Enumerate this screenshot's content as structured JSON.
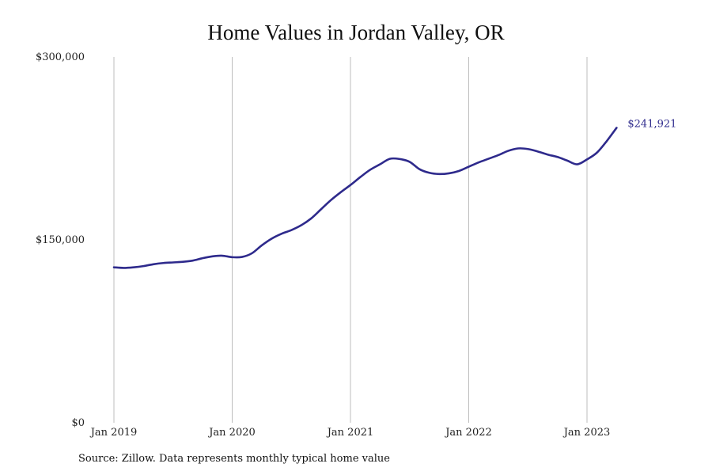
{
  "chart_data": {
    "type": "line",
    "title": "Home Values in Jordan Valley, OR",
    "xlabel": "",
    "ylabel": "",
    "ylim": [
      0,
      300000
    ],
    "y_ticks": [
      {
        "value": 0,
        "label": "$0"
      },
      {
        "value": 150000,
        "label": "$150,000"
      },
      {
        "value": 300000,
        "label": "$300,000"
      }
    ],
    "x_ticks": [
      {
        "value": "2019-01",
        "label": "Jan 2019"
      },
      {
        "value": "2020-01",
        "label": "Jan 2020"
      },
      {
        "value": "2021-01",
        "label": "Jan 2021"
      },
      {
        "value": "2022-01",
        "label": "Jan 2022"
      },
      {
        "value": "2023-01",
        "label": "Jan 2023"
      }
    ],
    "grid": "vertical",
    "series": [
      {
        "color": "#2e2a8c",
        "x": [
          "2019-01",
          "2019-02",
          "2019-03",
          "2019-04",
          "2019-05",
          "2019-06",
          "2019-07",
          "2019-08",
          "2019-09",
          "2019-10",
          "2019-11",
          "2019-12",
          "2020-01",
          "2020-02",
          "2020-03",
          "2020-04",
          "2020-05",
          "2020-06",
          "2020-07",
          "2020-08",
          "2020-09",
          "2020-10",
          "2020-11",
          "2020-12",
          "2021-01",
          "2021-02",
          "2021-03",
          "2021-04",
          "2021-05",
          "2021-06",
          "2021-07",
          "2021-08",
          "2021-09",
          "2021-10",
          "2021-11",
          "2021-12",
          "2022-01",
          "2022-02",
          "2022-03",
          "2022-04",
          "2022-05",
          "2022-06",
          "2022-07",
          "2022-08",
          "2022-09",
          "2022-10",
          "2022-11",
          "2022-12",
          "2023-01",
          "2023-02",
          "2023-03",
          "2023-04"
        ],
        "values": [
          127500,
          127000,
          127500,
          128500,
          130000,
          131000,
          131500,
          132000,
          133000,
          135000,
          136500,
          137000,
          135800,
          136000,
          139000,
          145500,
          151000,
          155000,
          158000,
          162000,
          167500,
          175000,
          182500,
          189000,
          195000,
          201500,
          207500,
          212000,
          216500,
          216300,
          214000,
          208000,
          205000,
          204000,
          204600,
          206500,
          210000,
          213500,
          216500,
          219500,
          223000,
          225000,
          224500,
          222500,
          220000,
          218000,
          215000,
          212000,
          216000,
          221500,
          231000,
          241921
        ]
      }
    ],
    "end_label": "$241,921",
    "source_note": "Source: Zillow. Data represents monthly typical home value"
  }
}
